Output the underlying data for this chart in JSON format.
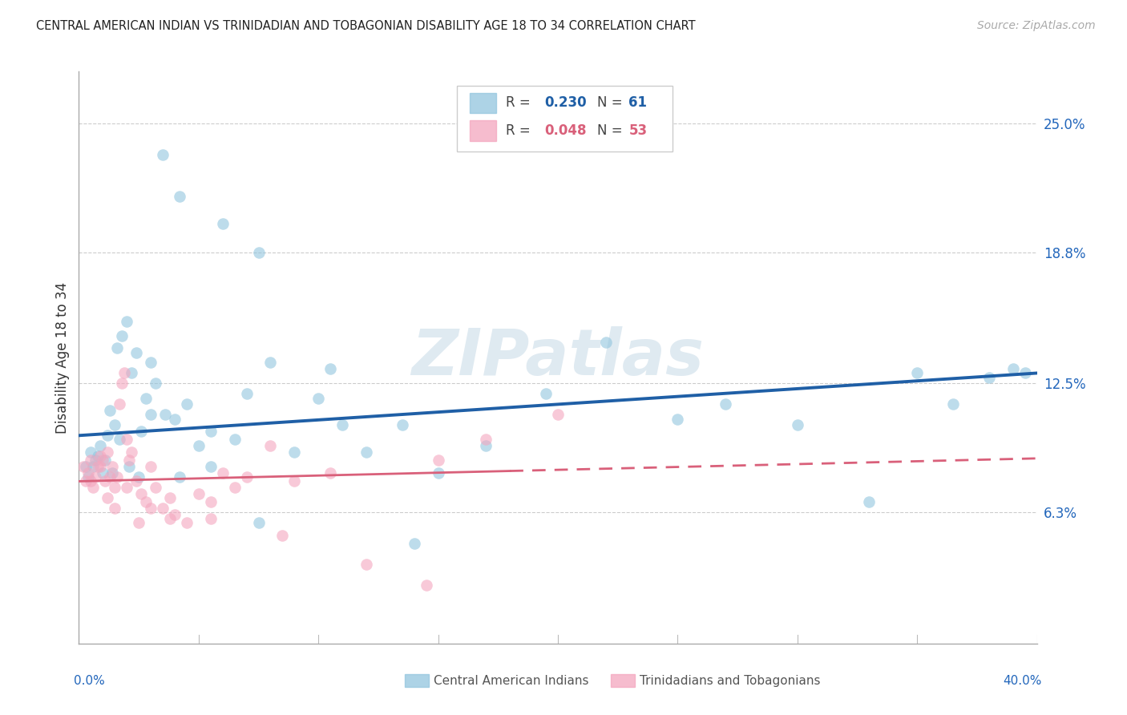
{
  "title": "CENTRAL AMERICAN INDIAN VS TRINIDADIAN AND TOBAGONIAN DISABILITY AGE 18 TO 34 CORRELATION CHART",
  "source": "Source: ZipAtlas.com",
  "ylabel": "Disability Age 18 to 34",
  "ytick_labels": [
    "6.3%",
    "12.5%",
    "18.8%",
    "25.0%"
  ],
  "ytick_vals": [
    6.3,
    12.5,
    18.8,
    25.0
  ],
  "xmin": 0.0,
  "xmax": 40.0,
  "ymin": 0.0,
  "ymax": 27.5,
  "legend1_R": "0.230",
  "legend1_N": "61",
  "legend2_R": "0.048",
  "legend2_N": "53",
  "blue_color": "#92c5de",
  "pink_color": "#f4a6be",
  "trendline_blue": "#1f5fa6",
  "trendline_pink": "#d9607a",
  "watermark": "ZIPatlas",
  "blue_line_x0": 0.0,
  "blue_line_y0": 10.0,
  "blue_line_x1": 40.0,
  "blue_line_y1": 13.0,
  "pink_line_x0": 0.0,
  "pink_line_y0": 7.8,
  "pink_line_x1": 40.0,
  "pink_line_y1": 8.9,
  "pink_solid_end": 18.0,
  "blue_scatter_x": [
    3.5,
    4.2,
    6.0,
    7.5,
    0.3,
    0.5,
    0.7,
    0.9,
    1.0,
    1.2,
    1.3,
    1.5,
    1.6,
    1.8,
    2.0,
    2.2,
    2.4,
    2.6,
    2.8,
    3.0,
    3.2,
    3.6,
    4.0,
    4.5,
    5.0,
    5.5,
    6.5,
    7.0,
    8.0,
    9.0,
    10.0,
    11.0,
    12.0,
    13.5,
    15.0,
    17.0,
    19.5,
    22.0,
    25.0,
    27.0,
    30.0,
    33.0,
    35.0,
    36.5,
    38.0,
    39.0,
    39.5,
    0.4,
    0.6,
    0.8,
    1.1,
    1.4,
    1.7,
    2.1,
    2.5,
    3.0,
    4.2,
    5.5,
    7.5,
    10.5,
    14.0
  ],
  "blue_scatter_y": [
    23.5,
    21.5,
    20.2,
    18.8,
    8.5,
    9.2,
    8.8,
    9.5,
    8.2,
    10.0,
    11.2,
    10.5,
    14.2,
    14.8,
    15.5,
    13.0,
    14.0,
    10.2,
    11.8,
    13.5,
    12.5,
    11.0,
    10.8,
    11.5,
    9.5,
    10.2,
    9.8,
    12.0,
    13.5,
    9.2,
    11.8,
    10.5,
    9.2,
    10.5,
    8.2,
    9.5,
    12.0,
    14.5,
    10.8,
    11.5,
    10.5,
    6.8,
    13.0,
    11.5,
    12.8,
    13.2,
    13.0,
    8.0,
    8.5,
    9.0,
    8.8,
    8.2,
    9.8,
    8.5,
    8.0,
    11.0,
    8.0,
    8.5,
    5.8,
    13.2,
    4.8
  ],
  "pink_scatter_x": [
    0.2,
    0.3,
    0.4,
    0.5,
    0.6,
    0.7,
    0.8,
    0.9,
    1.0,
    1.1,
    1.2,
    1.3,
    1.4,
    1.5,
    1.6,
    1.7,
    1.8,
    1.9,
    2.0,
    2.1,
    2.2,
    2.4,
    2.6,
    2.8,
    3.0,
    3.2,
    3.5,
    3.8,
    4.0,
    4.5,
    5.0,
    5.5,
    6.0,
    6.5,
    7.0,
    8.0,
    9.0,
    10.5,
    12.0,
    15.0,
    17.0,
    20.0,
    0.5,
    0.9,
    1.2,
    1.5,
    2.0,
    2.5,
    3.0,
    3.8,
    5.5,
    8.5,
    14.5
  ],
  "pink_scatter_y": [
    8.5,
    7.8,
    8.2,
    8.8,
    7.5,
    8.0,
    8.5,
    9.0,
    8.8,
    7.8,
    9.2,
    8.0,
    8.5,
    7.5,
    8.0,
    11.5,
    12.5,
    13.0,
    9.8,
    8.8,
    9.2,
    7.8,
    7.2,
    6.8,
    8.5,
    7.5,
    6.5,
    7.0,
    6.2,
    5.8,
    7.2,
    6.8,
    8.2,
    7.5,
    8.0,
    9.5,
    7.8,
    8.2,
    3.8,
    8.8,
    9.8,
    11.0,
    7.8,
    8.5,
    7.0,
    6.5,
    7.5,
    5.8,
    6.5,
    6.0,
    6.0,
    5.2,
    2.8
  ]
}
